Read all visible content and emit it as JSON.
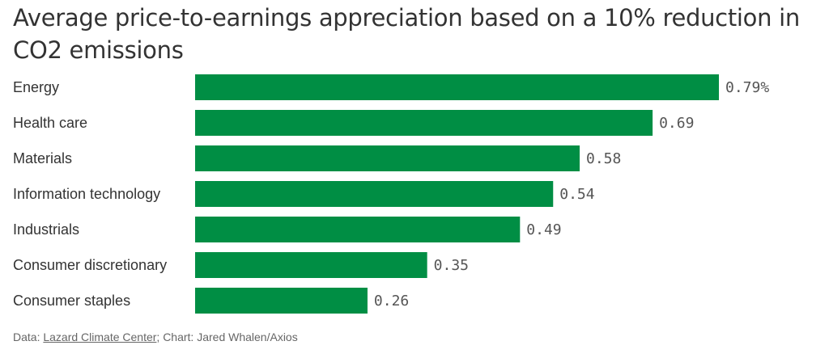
{
  "chart_data": {
    "type": "bar",
    "orientation": "horizontal",
    "title": "Average price-to-earnings appreciation based on a 10% reduction in CO2 emissions",
    "categories": [
      "Energy",
      "Health care",
      "Materials",
      "Information technology",
      "Industrials",
      "Consumer discretionary",
      "Consumer staples"
    ],
    "values": [
      0.79,
      0.69,
      0.58,
      0.54,
      0.49,
      0.35,
      0.26
    ],
    "value_labels": [
      "0.79%",
      "0.69",
      "0.58",
      "0.54",
      "0.49",
      "0.35",
      "0.26"
    ],
    "xlim": [
      0,
      0.79
    ],
    "grid": false,
    "bar_color": "#008e44"
  },
  "footer": {
    "prefix": "Data: ",
    "source_link": "Lazard Climate Center",
    "suffix": "; Chart: Jared Whalen/Axios"
  }
}
